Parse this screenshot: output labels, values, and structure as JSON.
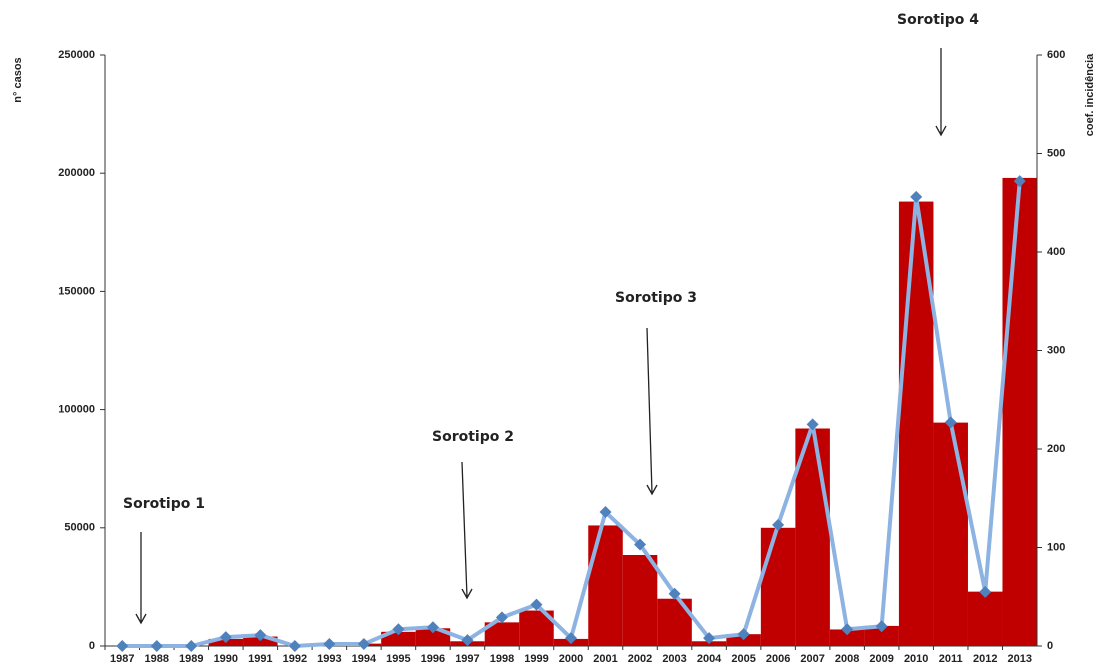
{
  "chart_data": {
    "type": "bar-line",
    "categories": [
      "1987",
      "1988",
      "1989",
      "1990",
      "1991",
      "1992",
      "1993",
      "1994",
      "1995",
      "1996",
      "1997",
      "1998",
      "1999",
      "2000",
      "2001",
      "2002",
      "2003",
      "2004",
      "2005",
      "2006",
      "2007",
      "2008",
      "2009",
      "2010",
      "2011",
      "2012",
      "2013"
    ],
    "series": [
      {
        "name": "n° casos",
        "type": "bar",
        "color": "#c00000",
        "axis": "y",
        "values": [
          0,
          0,
          0,
          3000,
          4000,
          0,
          500,
          1000,
          6000,
          7500,
          2000,
          10000,
          15000,
          3000,
          51000,
          38500,
          20000,
          2000,
          5000,
          50000,
          92000,
          7000,
          8500,
          188000,
          94500,
          23000,
          198000
        ]
      },
      {
        "name": "coef. incidência",
        "type": "line",
        "color": "#8db3e2",
        "marker_color": "#4f81bd",
        "axis": "y2",
        "values": [
          0,
          0,
          0,
          9,
          11,
          0,
          2,
          2,
          17,
          19,
          6,
          29,
          42,
          8,
          136,
          103,
          53,
          8,
          12,
          123,
          225,
          17,
          20,
          456,
          227,
          55,
          472
        ]
      }
    ],
    "ylabel": "n° casos",
    "y2label": "coef. incidência",
    "ylim": [
      0,
      250000
    ],
    "yticks": [
      0,
      50000,
      100000,
      150000,
      200000,
      250000
    ],
    "y2lim": [
      0,
      600
    ],
    "y2ticks": [
      0,
      100,
      200,
      300,
      400,
      500,
      600
    ],
    "annotations": [
      "Sorotipo 1",
      "Sorotipo 2",
      "Sorotipo 3",
      "Sorotipo 4"
    ]
  }
}
